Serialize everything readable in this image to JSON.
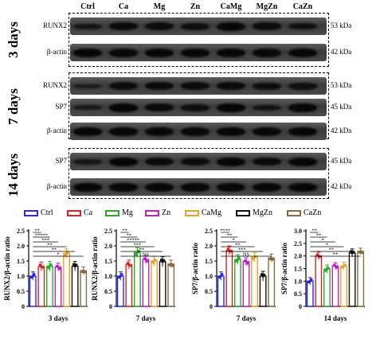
{
  "lanes": [
    "Ctrl",
    "Ca",
    "Mg",
    "Zn",
    "CaMg",
    "MgZn",
    "CaZn"
  ],
  "panels": [
    {
      "day": "3 days",
      "rows": [
        {
          "label": "RUNX2",
          "kda": "53 kDa",
          "int": [
            0.55,
            0.85,
            0.8,
            0.75,
            0.9,
            0.8,
            0.7
          ]
        },
        {
          "label": "β-actin",
          "kda": "42 kDa",
          "int": [
            0.9,
            0.9,
            0.9,
            0.9,
            0.9,
            0.9,
            0.9
          ]
        }
      ]
    },
    {
      "day": "7 days",
      "rows": [
        {
          "label": "RUNX2",
          "kda": "53 kDa",
          "int": [
            0.45,
            0.8,
            0.85,
            0.8,
            0.85,
            0.75,
            0.75
          ]
        },
        {
          "label": "SP7",
          "kda": "45 kDa",
          "int": [
            0.5,
            0.95,
            0.85,
            0.75,
            0.95,
            0.6,
            0.9
          ]
        },
        {
          "label": "β-actin",
          "kda": "42 kDa",
          "int": [
            0.9,
            0.9,
            0.9,
            0.9,
            0.9,
            0.9,
            0.9
          ]
        }
      ]
    },
    {
      "day": "14 days",
      "rows": [
        {
          "label": "SP7",
          "kda": "45 kDa",
          "int": [
            0.55,
            0.95,
            0.85,
            0.8,
            0.95,
            0.85,
            0.9
          ]
        },
        {
          "label": "β-actin",
          "kda": "42 kDa",
          "int": [
            0.9,
            0.9,
            0.9,
            0.9,
            0.9,
            0.9,
            0.9
          ]
        }
      ]
    }
  ],
  "legend": [
    {
      "name": "Ctrl",
      "color": "#2a2ae6"
    },
    {
      "name": "Ca",
      "color": "#e02020"
    },
    {
      "name": "Mg",
      "color": "#22b022"
    },
    {
      "name": "Zn",
      "color": "#c020c8"
    },
    {
      "name": "CaMg",
      "color": "#f0a020"
    },
    {
      "name": "MgZn",
      "color": "#111111"
    },
    {
      "name": "CaZn",
      "color": "#8b6a3a"
    }
  ],
  "chart_data": [
    {
      "type": "bar",
      "ylabel": "RUNX2/β-actin ratio",
      "xlabel": "3 days",
      "ylim": [
        0,
        2.5
      ],
      "yticks": [
        0,
        0.5,
        1.0,
        1.5,
        2.0,
        2.5
      ],
      "categories": [
        "Ctrl",
        "Ca",
        "Mg",
        "Zn",
        "CaMg",
        "MgZn",
        "CaZn"
      ],
      "values": [
        1.0,
        1.32,
        1.33,
        1.3,
        1.75,
        1.33,
        1.18
      ],
      "significance": [
        "**",
        "*****",
        "***",
        "**",
        "**",
        "*"
      ]
    },
    {
      "type": "bar",
      "ylabel": "RUNX2/β-actin ratio",
      "xlabel": "7 days",
      "ylim": [
        0,
        2.5
      ],
      "yticks": [
        0,
        0.5,
        1.0,
        1.5,
        2.0,
        2.5
      ],
      "categories": [
        "Ctrl",
        "Ca",
        "Mg",
        "Zn",
        "CaMg",
        "MgZn",
        "CaZn"
      ],
      "values": [
        1.0,
        1.38,
        1.78,
        1.55,
        1.5,
        1.48,
        1.4
      ],
      "significance": [
        "**",
        "**",
        "*****",
        "***",
        "**",
        "NS"
      ]
    },
    {
      "type": "bar",
      "ylabel": "SP7/β-actin ratio",
      "xlabel": "7 days",
      "ylim": [
        0,
        2.5
      ],
      "yticks": [
        0,
        0.5,
        1.0,
        1.5,
        2.0,
        2.5
      ],
      "categories": [
        "Ctrl",
        "Ca",
        "Mg",
        "Zn",
        "CaMg",
        "MgZn",
        "CaZn"
      ],
      "values": [
        1.0,
        1.85,
        1.55,
        1.48,
        1.62,
        1.0,
        1.6
      ],
      "significance": [
        "****",
        "**",
        "*",
        "**",
        "***",
        "NS"
      ]
    },
    {
      "type": "bar",
      "ylabel": "SP7/β-actin ratio",
      "xlabel": "14 days",
      "ylim": [
        0,
        3.0
      ],
      "yticks": [
        0,
        0.5,
        1.0,
        1.5,
        2.0,
        2.5,
        3.0
      ],
      "categories": [
        "Ctrl",
        "Ca",
        "Mg",
        "Zn",
        "CaMg",
        "MgZn",
        "CaZn"
      ],
      "values": [
        1.0,
        2.0,
        1.48,
        1.6,
        1.6,
        2.12,
        2.18
      ],
      "significance": [
        "**",
        "**",
        "*",
        "*",
        "**",
        "**"
      ]
    }
  ]
}
